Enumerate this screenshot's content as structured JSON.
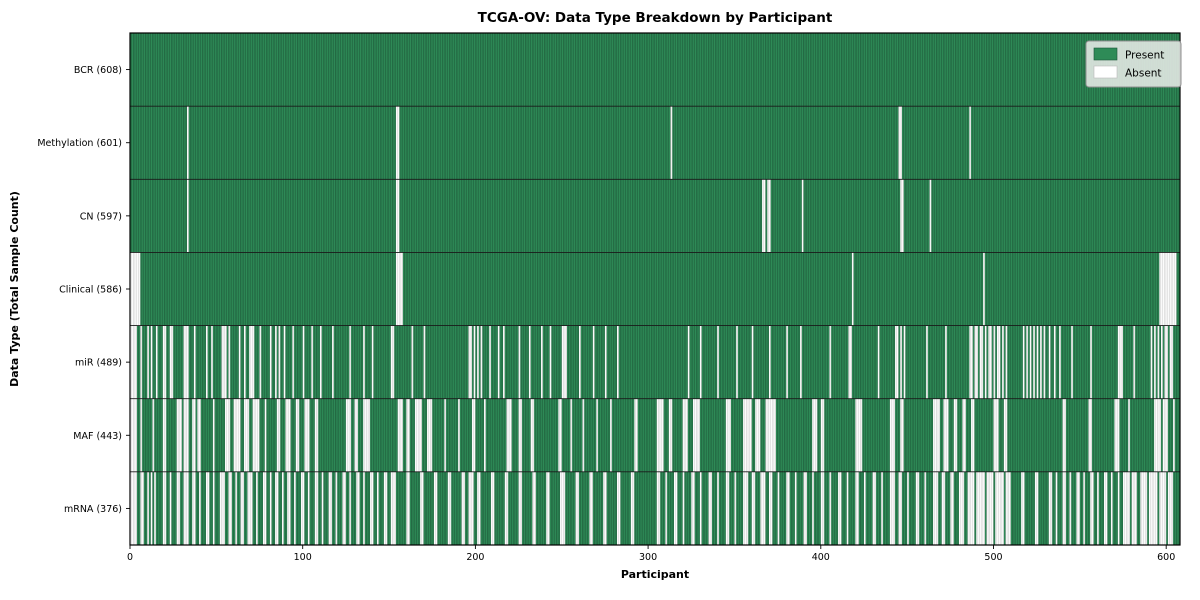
{
  "chart_data": {
    "type": "heatmap",
    "title": "TCGA-OV: Data Type Breakdown by Participant",
    "xlabel": "Participant",
    "ylabel": "Data Type (Total Sample Count)",
    "x_ticks": [
      0,
      100,
      200,
      300,
      400,
      500,
      600
    ],
    "n_participants": 608,
    "legend_position": "upper right",
    "legend": [
      {
        "label": "Present",
        "color": "#2e8b57"
      },
      {
        "label": "Absent",
        "color": "#ffffff"
      }
    ],
    "rows": [
      {
        "label": "BCR (608)",
        "data_type": "BCR",
        "present_count": 608,
        "absent_segments": []
      },
      {
        "label": "Methylation (601)",
        "data_type": "Methylation",
        "present_count": 601,
        "absent_segments": [
          [
            33,
            1
          ],
          [
            154,
            2
          ],
          [
            313,
            1
          ],
          [
            445,
            2
          ],
          [
            486,
            1
          ]
        ]
      },
      {
        "label": "CN (597)",
        "data_type": "CN",
        "present_count": 597,
        "absent_segments": [
          [
            33,
            1
          ],
          [
            154,
            2
          ],
          [
            366,
            2
          ],
          [
            369,
            2
          ],
          [
            389,
            1
          ],
          [
            446,
            2
          ],
          [
            463,
            1
          ]
        ]
      },
      {
        "label": "Clinical (586)",
        "data_type": "Clinical",
        "present_count": 586,
        "absent_segments": [
          [
            0,
            6
          ],
          [
            154,
            4
          ],
          [
            418,
            1
          ],
          [
            494,
            1
          ],
          [
            596,
            10
          ]
        ]
      },
      {
        "label": "miR (489)",
        "data_type": "miR",
        "present_count": 489,
        "absent_segments": [
          [
            0,
            4
          ],
          [
            6,
            1
          ],
          [
            10,
            1
          ],
          [
            12,
            1
          ],
          [
            15,
            1
          ],
          [
            19,
            2
          ],
          [
            23,
            2
          ],
          [
            31,
            3
          ],
          [
            37,
            1
          ],
          [
            44,
            1
          ],
          [
            47,
            1
          ],
          [
            53,
            3
          ],
          [
            57,
            1
          ],
          [
            63,
            1
          ],
          [
            66,
            1
          ],
          [
            69,
            3
          ],
          [
            75,
            1
          ],
          [
            81,
            1
          ],
          [
            84,
            1
          ],
          [
            86,
            1
          ],
          [
            89,
            1
          ],
          [
            94,
            1
          ],
          [
            100,
            1
          ],
          [
            105,
            1
          ],
          [
            110,
            1
          ],
          [
            117,
            1
          ],
          [
            127,
            1
          ],
          [
            135,
            1
          ],
          [
            140,
            1
          ],
          [
            151,
            2
          ],
          [
            163,
            1
          ],
          [
            170,
            1
          ],
          [
            196,
            2
          ],
          [
            199,
            1
          ],
          [
            201,
            1
          ],
          [
            203,
            1
          ],
          [
            208,
            1
          ],
          [
            213,
            1
          ],
          [
            216,
            1
          ],
          [
            225,
            1
          ],
          [
            231,
            1
          ],
          [
            238,
            1
          ],
          [
            243,
            1
          ],
          [
            250,
            3
          ],
          [
            260,
            1
          ],
          [
            268,
            1
          ],
          [
            275,
            1
          ],
          [
            282,
            1
          ],
          [
            323,
            1
          ],
          [
            330,
            1
          ],
          [
            340,
            1
          ],
          [
            351,
            1
          ],
          [
            360,
            1
          ],
          [
            370,
            1
          ],
          [
            380,
            1
          ],
          [
            388,
            1
          ],
          [
            405,
            1
          ],
          [
            416,
            2
          ],
          [
            433,
            1
          ],
          [
            443,
            2
          ],
          [
            446,
            1
          ],
          [
            448,
            1
          ],
          [
            461,
            1
          ],
          [
            472,
            1
          ],
          [
            486,
            2
          ],
          [
            489,
            2
          ],
          [
            492,
            2
          ],
          [
            495,
            1
          ],
          [
            497,
            2
          ],
          [
            500,
            1
          ],
          [
            502,
            2
          ],
          [
            505,
            1
          ],
          [
            507,
            1
          ],
          [
            517,
            1
          ],
          [
            519,
            1
          ],
          [
            521,
            1
          ],
          [
            523,
            1
          ],
          [
            525,
            1
          ],
          [
            527,
            1
          ],
          [
            529,
            1
          ],
          [
            532,
            1
          ],
          [
            535,
            1
          ],
          [
            538,
            1
          ],
          [
            545,
            1
          ],
          [
            556,
            1
          ],
          [
            572,
            3
          ],
          [
            581,
            1
          ],
          [
            591,
            1
          ],
          [
            593,
            1
          ],
          [
            595,
            1
          ],
          [
            597,
            1
          ],
          [
            599,
            2
          ],
          [
            602,
            2
          ]
        ]
      },
      {
        "label": "MAF (443)",
        "data_type": "MAF",
        "present_count": 443,
        "absent_segments": [
          [
            0,
            4
          ],
          [
            6,
            1
          ],
          [
            13,
            1
          ],
          [
            19,
            2
          ],
          [
            27,
            3
          ],
          [
            31,
            3
          ],
          [
            36,
            2
          ],
          [
            39,
            2
          ],
          [
            48,
            1
          ],
          [
            55,
            3
          ],
          [
            60,
            4
          ],
          [
            66,
            3
          ],
          [
            71,
            4
          ],
          [
            78,
            1
          ],
          [
            85,
            2
          ],
          [
            90,
            3
          ],
          [
            96,
            2
          ],
          [
            101,
            3
          ],
          [
            107,
            2
          ],
          [
            125,
            3
          ],
          [
            130,
            2
          ],
          [
            135,
            4
          ],
          [
            155,
            3
          ],
          [
            160,
            2
          ],
          [
            165,
            4
          ],
          [
            172,
            3
          ],
          [
            182,
            1
          ],
          [
            190,
            1
          ],
          [
            198,
            2
          ],
          [
            205,
            1
          ],
          [
            218,
            3
          ],
          [
            225,
            2
          ],
          [
            232,
            2
          ],
          [
            248,
            2
          ],
          [
            255,
            1
          ],
          [
            262,
            1
          ],
          [
            270,
            1
          ],
          [
            278,
            1
          ],
          [
            292,
            2
          ],
          [
            305,
            4
          ],
          [
            312,
            2
          ],
          [
            320,
            3
          ],
          [
            326,
            4
          ],
          [
            345,
            3
          ],
          [
            355,
            5
          ],
          [
            362,
            3
          ],
          [
            368,
            6
          ],
          [
            395,
            3
          ],
          [
            400,
            2
          ],
          [
            420,
            4
          ],
          [
            440,
            3
          ],
          [
            446,
            2
          ],
          [
            465,
            4
          ],
          [
            471,
            3
          ],
          [
            477,
            2
          ],
          [
            482,
            2
          ],
          [
            487,
            2
          ],
          [
            500,
            3
          ],
          [
            506,
            2
          ],
          [
            540,
            2
          ],
          [
            555,
            2
          ],
          [
            570,
            3
          ],
          [
            578,
            1
          ],
          [
            593,
            4
          ],
          [
            598,
            3
          ],
          [
            604,
            1
          ]
        ]
      },
      {
        "label": "mRNA (376)",
        "data_type": "mRNA",
        "present_count": 376,
        "absent_segments": [
          [
            0,
            4
          ],
          [
            6,
            2
          ],
          [
            10,
            1
          ],
          [
            12,
            1
          ],
          [
            14,
            1
          ],
          [
            19,
            2
          ],
          [
            23,
            1
          ],
          [
            27,
            2
          ],
          [
            31,
            3
          ],
          [
            36,
            2
          ],
          [
            40,
            1
          ],
          [
            44,
            2
          ],
          [
            48,
            1
          ],
          [
            52,
            3
          ],
          [
            57,
            2
          ],
          [
            61,
            1
          ],
          [
            64,
            2
          ],
          [
            68,
            3
          ],
          [
            73,
            1
          ],
          [
            77,
            2
          ],
          [
            81,
            1
          ],
          [
            84,
            2
          ],
          [
            88,
            1
          ],
          [
            91,
            2
          ],
          [
            95,
            1
          ],
          [
            99,
            2
          ],
          [
            103,
            1
          ],
          [
            107,
            2
          ],
          [
            111,
            1
          ],
          [
            115,
            2
          ],
          [
            119,
            1
          ],
          [
            123,
            2
          ],
          [
            127,
            1
          ],
          [
            131,
            2
          ],
          [
            135,
            1
          ],
          [
            139,
            2
          ],
          [
            143,
            1
          ],
          [
            147,
            2
          ],
          [
            151,
            3
          ],
          [
            160,
            2
          ],
          [
            168,
            2
          ],
          [
            176,
            2
          ],
          [
            184,
            2
          ],
          [
            192,
            2
          ],
          [
            196,
            3
          ],
          [
            201,
            2
          ],
          [
            209,
            2
          ],
          [
            217,
            2
          ],
          [
            225,
            2
          ],
          [
            233,
            2
          ],
          [
            241,
            2
          ],
          [
            249,
            3
          ],
          [
            258,
            2
          ],
          [
            266,
            2
          ],
          [
            274,
            2
          ],
          [
            282,
            2
          ],
          [
            290,
            2
          ],
          [
            305,
            2
          ],
          [
            310,
            1
          ],
          [
            315,
            2
          ],
          [
            320,
            1
          ],
          [
            325,
            2
          ],
          [
            330,
            1
          ],
          [
            335,
            2
          ],
          [
            340,
            1
          ],
          [
            345,
            2
          ],
          [
            350,
            1
          ],
          [
            355,
            3
          ],
          [
            360,
            2
          ],
          [
            365,
            3
          ],
          [
            370,
            2
          ],
          [
            375,
            1
          ],
          [
            380,
            2
          ],
          [
            385,
            1
          ],
          [
            390,
            2
          ],
          [
            395,
            1
          ],
          [
            400,
            2
          ],
          [
            405,
            1
          ],
          [
            410,
            2
          ],
          [
            415,
            1
          ],
          [
            420,
            2
          ],
          [
            425,
            1
          ],
          [
            430,
            2
          ],
          [
            435,
            1
          ],
          [
            440,
            3
          ],
          [
            445,
            2
          ],
          [
            450,
            1
          ],
          [
            455,
            2
          ],
          [
            460,
            1
          ],
          [
            465,
            3
          ],
          [
            470,
            2
          ],
          [
            475,
            2
          ],
          [
            480,
            3
          ],
          [
            485,
            4
          ],
          [
            490,
            5
          ],
          [
            496,
            4
          ],
          [
            501,
            5
          ],
          [
            507,
            3
          ],
          [
            516,
            2
          ],
          [
            524,
            2
          ],
          [
            532,
            2
          ],
          [
            536,
            1
          ],
          [
            540,
            2
          ],
          [
            544,
            1
          ],
          [
            548,
            2
          ],
          [
            552,
            1
          ],
          [
            556,
            2
          ],
          [
            560,
            1
          ],
          [
            564,
            2
          ],
          [
            568,
            1
          ],
          [
            572,
            1
          ],
          [
            575,
            4
          ],
          [
            580,
            3
          ],
          [
            585,
            4
          ],
          [
            590,
            5
          ],
          [
            596,
            4
          ],
          [
            601,
            3
          ]
        ]
      }
    ]
  },
  "colors": {
    "present": "#2e8b57",
    "present_gap": "#1c5637",
    "absent": "#fdfdfd",
    "absent_gap": "#c6c6c6",
    "frame": "#000000",
    "separator": "#1a1a1a",
    "legend_bg": "#e7eae7",
    "legend_border": "#8f8f8f"
  }
}
